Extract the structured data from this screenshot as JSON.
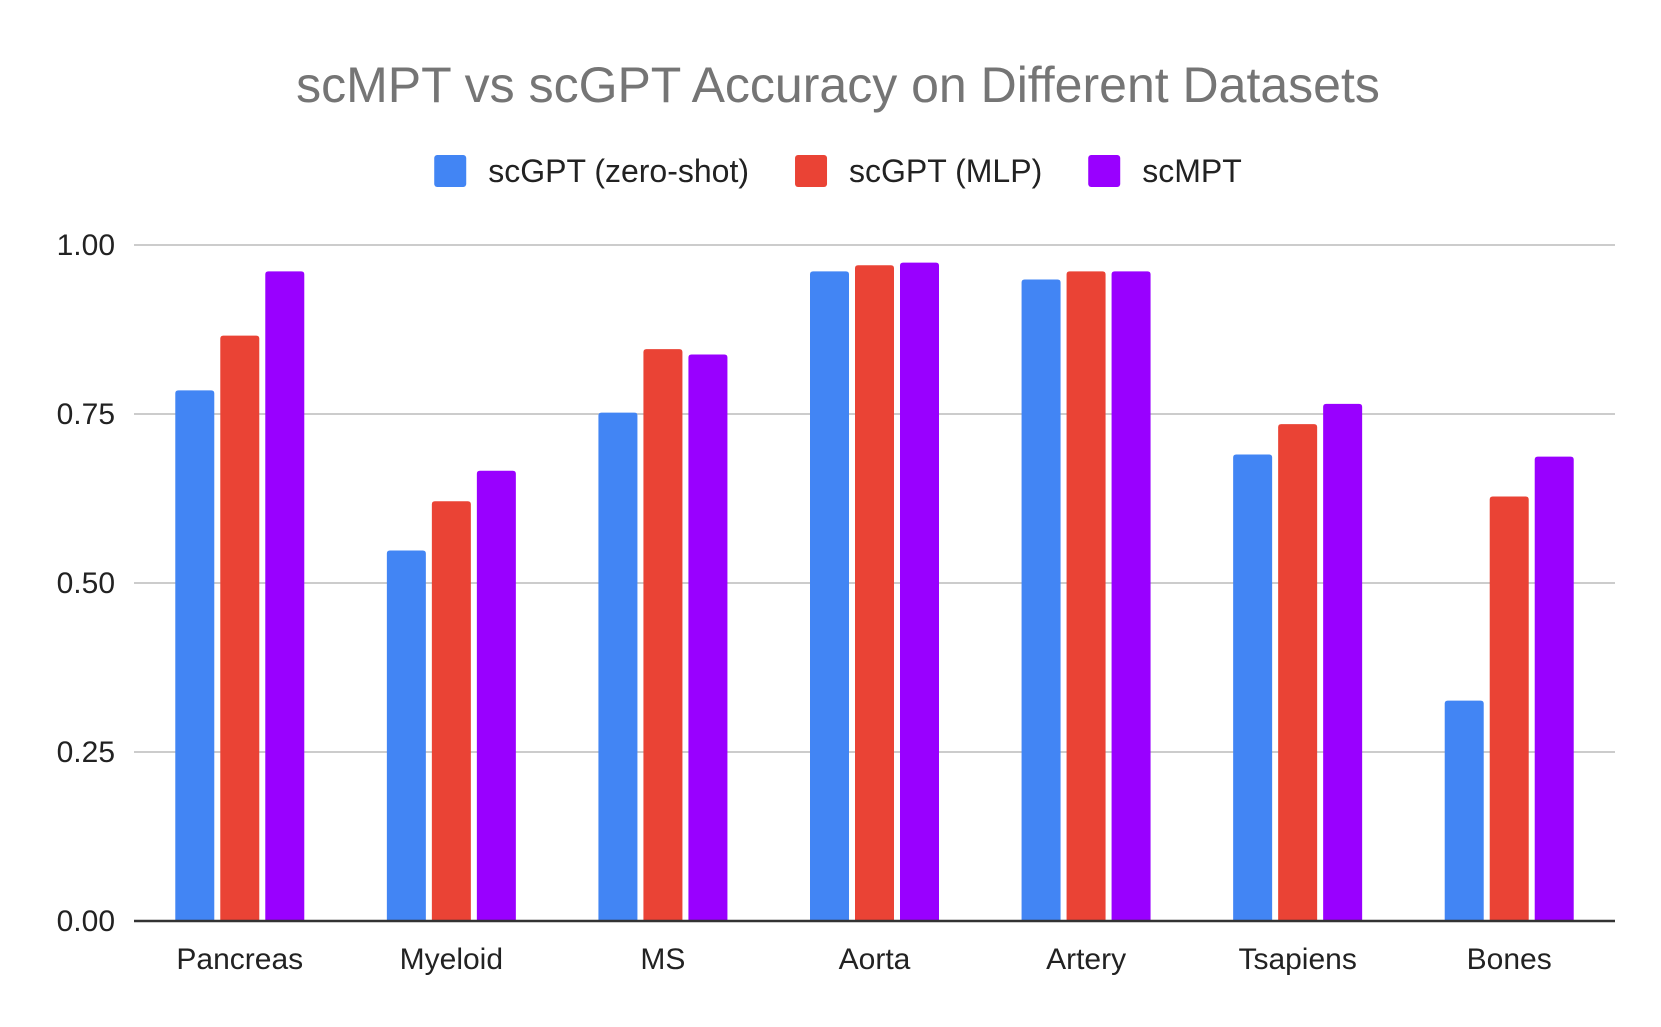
{
  "chart_data": {
    "type": "bar",
    "title": "scMPT vs scGPT Accuracy on Different Datasets",
    "xlabel": "",
    "ylabel": "",
    "ylim": [
      0,
      1
    ],
    "yticks": [
      "0.00",
      "0.25",
      "0.50",
      "0.75",
      "1.00"
    ],
    "ytick_values": [
      0,
      0.25,
      0.5,
      0.75,
      1.0
    ],
    "grid": true,
    "legend_position": "top-center",
    "categories": [
      "Pancreas",
      "Myeloid",
      "MS",
      "Aorta",
      "Artery",
      "Tsapiens",
      "Bones"
    ],
    "series": [
      {
        "name": "scGPT (zero-shot)",
        "color": "#4285f4",
        "values": [
          0.785,
          0.548,
          0.752,
          0.961,
          0.949,
          0.69,
          0.326
        ]
      },
      {
        "name": "scGPT (MLP)",
        "color": "#ea4335",
        "values": [
          0.866,
          0.621,
          0.846,
          0.97,
          0.961,
          0.735,
          0.628
        ]
      },
      {
        "name": "scMPT",
        "color": "#9900ff",
        "values": [
          0.961,
          0.666,
          0.838,
          0.974,
          0.961,
          0.765,
          0.687
        ]
      }
    ]
  }
}
